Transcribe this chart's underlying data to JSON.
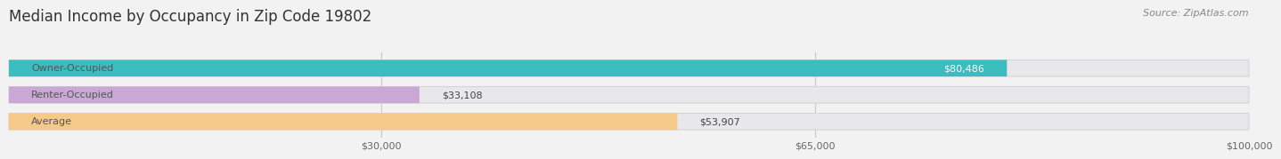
{
  "title": "Median Income by Occupancy in Zip Code 19802",
  "source": "Source: ZipAtlas.com",
  "categories": [
    "Owner-Occupied",
    "Renter-Occupied",
    "Average"
  ],
  "values": [
    80486,
    33108,
    53907
  ],
  "bar_colors": [
    "#3bbcbe",
    "#c9a8d5",
    "#f5c98a"
  ],
  "label_bg_colors": [
    "#e8f6f7",
    "#f0eaf5",
    "#fdf3e3"
  ],
  "label_text_color": "#555555",
  "value_inside": [
    true,
    false,
    false
  ],
  "value_labels": [
    "$80,486",
    "$33,108",
    "$53,907"
  ],
  "xlim": [
    0,
    100000
  ],
  "xticks": [
    30000,
    65000,
    100000
  ],
  "xtick_labels": [
    "$30,000",
    "$65,000",
    "$100,000"
  ],
  "background_color": "#f2f2f2",
  "bar_bg_color": "#e8e8ea",
  "bar_bg_edge_color": "#d5d5d8",
  "title_fontsize": 12,
  "source_fontsize": 8,
  "label_fontsize": 8,
  "value_fontsize": 8,
  "bar_height": 0.62
}
